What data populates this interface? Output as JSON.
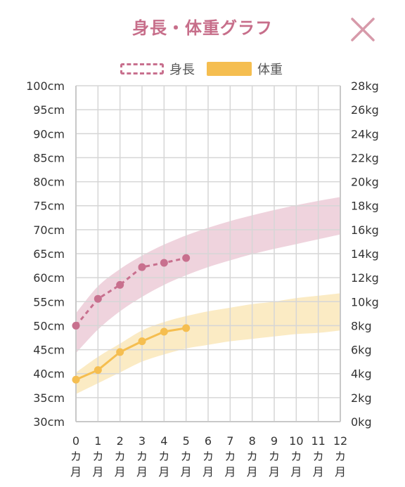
{
  "header": {
    "title": "身長・体重グラフ"
  },
  "close_button": {
    "icon": "close-icon",
    "color": "#d79aaa"
  },
  "legend": [
    {
      "label": "身長",
      "style": "dashed",
      "color": "#c8708e"
    },
    {
      "label": "体重",
      "style": "solid",
      "color": "#f5be50"
    }
  ],
  "chart_data": {
    "type": "line",
    "x": [
      0,
      1,
      2,
      3,
      4,
      5,
      6,
      7,
      8,
      9,
      10,
      11,
      12
    ],
    "x_tick_labels": [
      [
        "0",
        "カ",
        "月"
      ],
      [
        "1",
        "カ",
        "月"
      ],
      [
        "2",
        "カ",
        "月"
      ],
      [
        "3",
        "カ",
        "月"
      ],
      [
        "4",
        "カ",
        "月"
      ],
      [
        "5",
        "カ",
        "月"
      ],
      [
        "6",
        "カ",
        "月"
      ],
      [
        "7",
        "カ",
        "月"
      ],
      [
        "8",
        "カ",
        "月"
      ],
      [
        "9",
        "カ",
        "月"
      ],
      [
        "10",
        "カ",
        "月"
      ],
      [
        "11",
        "カ",
        "月"
      ],
      [
        "12",
        "カ",
        "月"
      ]
    ],
    "xlim": [
      0,
      12
    ],
    "y_left": {
      "unit": "cm",
      "range": [
        30,
        100
      ],
      "step": 5,
      "tick_labels": [
        "30cm",
        "35cm",
        "40cm",
        "45cm",
        "50cm",
        "55cm",
        "60cm",
        "65cm",
        "70cm",
        "75cm",
        "80cm",
        "85cm",
        "90cm",
        "95cm",
        "100cm"
      ]
    },
    "y_right": {
      "unit": "kg",
      "range": [
        0,
        28
      ],
      "step": 2,
      "tick_labels": [
        "0kg",
        "2kg",
        "4kg",
        "6kg",
        "8kg",
        "10kg",
        "12kg",
        "14kg",
        "16kg",
        "18kg",
        "20kg",
        "22kg",
        "24kg",
        "26kg",
        "28kg"
      ]
    },
    "grid": true,
    "series": [
      {
        "name": "身長",
        "axis": "left",
        "color": "#c8708e",
        "line_style": "dashed",
        "x": [
          0,
          1,
          2,
          3,
          4,
          5
        ],
        "values": [
          50,
          55.6,
          58.5,
          62.2,
          63.1,
          64.1
        ]
      },
      {
        "name": "体重",
        "axis": "right",
        "color": "#f5be50",
        "line_style": "solid",
        "x": [
          0,
          1,
          2,
          3,
          4,
          5
        ],
        "values": [
          3.5,
          4.3,
          5.8,
          6.7,
          7.5,
          7.8
        ]
      }
    ],
    "bands": [
      {
        "series": "身長",
        "axis": "left",
        "color": "#efd3dd",
        "x": [
          0,
          1,
          2,
          3,
          4,
          5,
          6,
          7,
          8,
          9,
          10,
          11,
          12
        ],
        "lower": [
          44.3,
          49.2,
          53.0,
          56.0,
          58.5,
          60.5,
          62.2,
          63.6,
          64.9,
          66.0,
          67.0,
          68.0,
          69.0
        ],
        "upper": [
          52.6,
          58.2,
          61.8,
          64.6,
          66.9,
          68.8,
          70.4,
          71.8,
          73.0,
          74.1,
          75.1,
          76.0,
          76.8
        ]
      },
      {
        "series": "体重",
        "axis": "right",
        "color": "#fbebc4",
        "x": [
          0,
          1,
          2,
          3,
          4,
          5,
          6,
          7,
          8,
          9,
          10,
          11,
          12
        ],
        "lower": [
          2.3,
          3.2,
          4.1,
          5.0,
          5.6,
          6.1,
          6.4,
          6.7,
          6.9,
          7.1,
          7.3,
          7.4,
          7.6
        ],
        "upper": [
          4.1,
          5.4,
          6.5,
          7.6,
          8.3,
          8.8,
          9.2,
          9.5,
          9.8,
          10.0,
          10.3,
          10.5,
          10.7
        ]
      }
    ]
  }
}
